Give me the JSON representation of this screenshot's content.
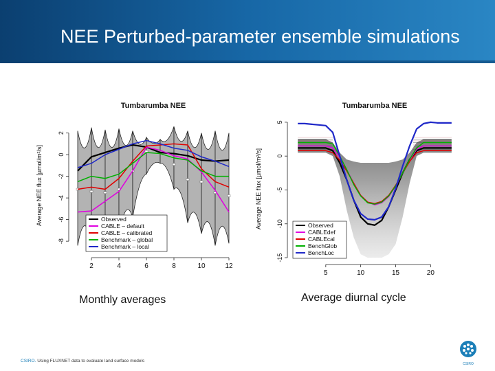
{
  "header": {
    "title": "NEE Perturbed-parameter ensemble simulations"
  },
  "captions": {
    "left": "Monthly averages",
    "right": "Average diurnal cycle"
  },
  "footer": {
    "brand": "CSIRO.",
    "text": "Using FLUXNET data to evaluate land surface models",
    "logo_label": "CSIRO"
  },
  "colors": {
    "header_gradient": [
      "#0b3f70",
      "#1767a6",
      "#2a86c4"
    ],
    "Observed": "#000000",
    "CABLE_default": "#e000e0",
    "CABLE_calibrated": "#e00000",
    "Benchmark_global": "#00b000",
    "Benchmark_local": "#1f28c8",
    "ensemble": "#8a8a8a"
  },
  "chart_data": [
    {
      "type": "line",
      "title": "Tumbarumba NEE",
      "xlabel": "",
      "ylabel": "Average NEE flux [µmol/m²/s]",
      "xlim": [
        0.6,
        12.4
      ],
      "ylim": [
        -9.2,
        3.5
      ],
      "x_ticks": [
        2,
        4,
        6,
        8,
        10,
        12
      ],
      "y_ticks": [
        2,
        0,
        -2,
        -4,
        -6,
        -8
      ],
      "grid": false,
      "legend_position": "bottom-left",
      "ensemble_spread": {
        "x": [
          1,
          2,
          3,
          4,
          5,
          6,
          7,
          8,
          9,
          10,
          11,
          12
        ],
        "upper": [
          2.2,
          2.5,
          2.3,
          2.4,
          2.2,
          1.6,
          1.4,
          2.6,
          2.2,
          2.0,
          2.2,
          2.0
        ],
        "lower": [
          -8.4,
          -8.2,
          -8.4,
          -7.5,
          -5.8,
          -1.8,
          -0.8,
          -3.2,
          -6.3,
          -7.3,
          -8.4,
          -8.2
        ],
        "markers": [
          -3.2,
          -3.4,
          -3.5,
          -3.2,
          -1.5,
          0.3,
          0.2,
          -0.9,
          -2.3,
          -2.5,
          -3.5,
          -3.8
        ]
      },
      "x": [
        1,
        2,
        3,
        4,
        5,
        6,
        7,
        8,
        9,
        10,
        11,
        12
      ],
      "series": [
        {
          "name": "Observed",
          "values": [
            -1.5,
            -0.2,
            0.2,
            0.6,
            0.9,
            0.7,
            0.2,
            0.1,
            -0.1,
            -0.5,
            -0.6,
            -0.5
          ]
        },
        {
          "name": "CABLE – default",
          "values": [
            -5.3,
            -5.2,
            -4.3,
            -3.4,
            -1.5,
            0.7,
            0.4,
            -0.1,
            -0.4,
            -1.6,
            -3.3,
            -5.3
          ]
        },
        {
          "name": "CABLE – calibrated",
          "values": [
            -3.2,
            -3.0,
            -3.2,
            -2.2,
            -0.6,
            0.8,
            0.9,
            1.0,
            0.9,
            -1.3,
            -2.5,
            -3.0
          ]
        },
        {
          "name": "Benchmark – global",
          "values": [
            -2.5,
            -2.0,
            -2.2,
            -1.8,
            -0.8,
            0.2,
            0.1,
            -0.3,
            -0.5,
            -1.5,
            -2.0,
            -2.0
          ]
        },
        {
          "name": "Benchmark – local",
          "values": [
            -1.2,
            -0.8,
            0.0,
            0.5,
            1.0,
            1.3,
            1.0,
            0.6,
            0.4,
            -0.2,
            -0.6,
            -1.1
          ]
        }
      ]
    },
    {
      "type": "line",
      "title": "Tumbarumba NEE",
      "xlabel": "",
      "ylabel": "Average NEE flux [µmol/m²/s]",
      "xlim": [
        0,
        24
      ],
      "ylim": [
        -15.5,
        5.8
      ],
      "x_ticks": [
        5,
        10,
        15,
        20
      ],
      "y_ticks": [
        5,
        0,
        -5,
        -10,
        -15
      ],
      "grid": false,
      "legend_position": "bottom-left",
      "ensemble_spread": {
        "x": [
          1,
          2,
          3,
          4,
          5,
          6,
          7,
          8,
          9,
          10,
          11,
          12,
          13,
          14,
          15,
          16,
          17,
          18,
          19,
          20,
          21,
          22,
          23
        ],
        "upper": [
          2.5,
          2.5,
          2.5,
          2.5,
          2.5,
          2.0,
          0.5,
          -0.5,
          -0.8,
          -1.0,
          -1.0,
          -1.0,
          -1.0,
          -1.0,
          -0.8,
          -0.5,
          0.5,
          2.0,
          2.5,
          2.5,
          2.5,
          2.5,
          2.5
        ],
        "lower": [
          0.5,
          0.5,
          0.5,
          0.5,
          0.5,
          0.0,
          -3.0,
          -8.0,
          -12.0,
          -14.5,
          -15.0,
          -15.0,
          -15.0,
          -14.5,
          -13.0,
          -9.0,
          -4.0,
          0.0,
          0.5,
          0.5,
          0.5,
          0.5,
          0.5
        ]
      },
      "x": [
        1,
        2,
        3,
        4,
        5,
        6,
        7,
        8,
        9,
        10,
        11,
        12,
        13,
        14,
        15,
        16,
        17,
        18,
        19,
        20,
        21,
        22,
        23
      ],
      "series": [
        {
          "name": "Observed",
          "values": [
            1.2,
            1.2,
            1.2,
            1.2,
            1.2,
            0.8,
            -1.0,
            -3.5,
            -6.5,
            -9.0,
            -10.0,
            -10.2,
            -9.5,
            -7.5,
            -5.0,
            -2.5,
            -0.5,
            0.8,
            1.2,
            1.2,
            1.2,
            1.2,
            1.2
          ]
        },
        {
          "name": "CABLEdef",
          "values": [
            1.5,
            1.5,
            1.5,
            1.5,
            1.5,
            1.2,
            -0.2,
            -2.0,
            -4.0,
            -5.8,
            -6.8,
            -7.2,
            -6.9,
            -6.0,
            -4.5,
            -2.5,
            -0.6,
            1.0,
            1.5,
            1.5,
            1.5,
            1.5,
            1.5
          ]
        },
        {
          "name": "CABLEcal",
          "values": [
            0.8,
            0.8,
            0.8,
            0.8,
            0.8,
            0.5,
            -0.6,
            -2.2,
            -4.0,
            -5.8,
            -6.8,
            -7.0,
            -6.7,
            -5.8,
            -4.3,
            -2.5,
            -0.8,
            0.5,
            0.8,
            0.8,
            0.8,
            0.8,
            0.8
          ]
        },
        {
          "name": "BenchGlob",
          "values": [
            2.0,
            2.0,
            2.0,
            2.0,
            2.0,
            1.8,
            0.0,
            -2.0,
            -4.2,
            -5.9,
            -6.9,
            -7.1,
            -6.8,
            -5.9,
            -4.4,
            -2.5,
            -0.5,
            1.2,
            2.0,
            2.0,
            2.0,
            2.0,
            2.0
          ]
        },
        {
          "name": "BenchLoc",
          "values": [
            4.8,
            4.8,
            4.7,
            4.6,
            4.5,
            3.5,
            0.0,
            -3.5,
            -6.5,
            -8.5,
            -9.3,
            -9.4,
            -9.0,
            -7.5,
            -4.8,
            -1.5,
            1.5,
            4.0,
            4.8,
            5.0,
            4.9,
            4.9,
            4.9
          ]
        }
      ]
    }
  ]
}
